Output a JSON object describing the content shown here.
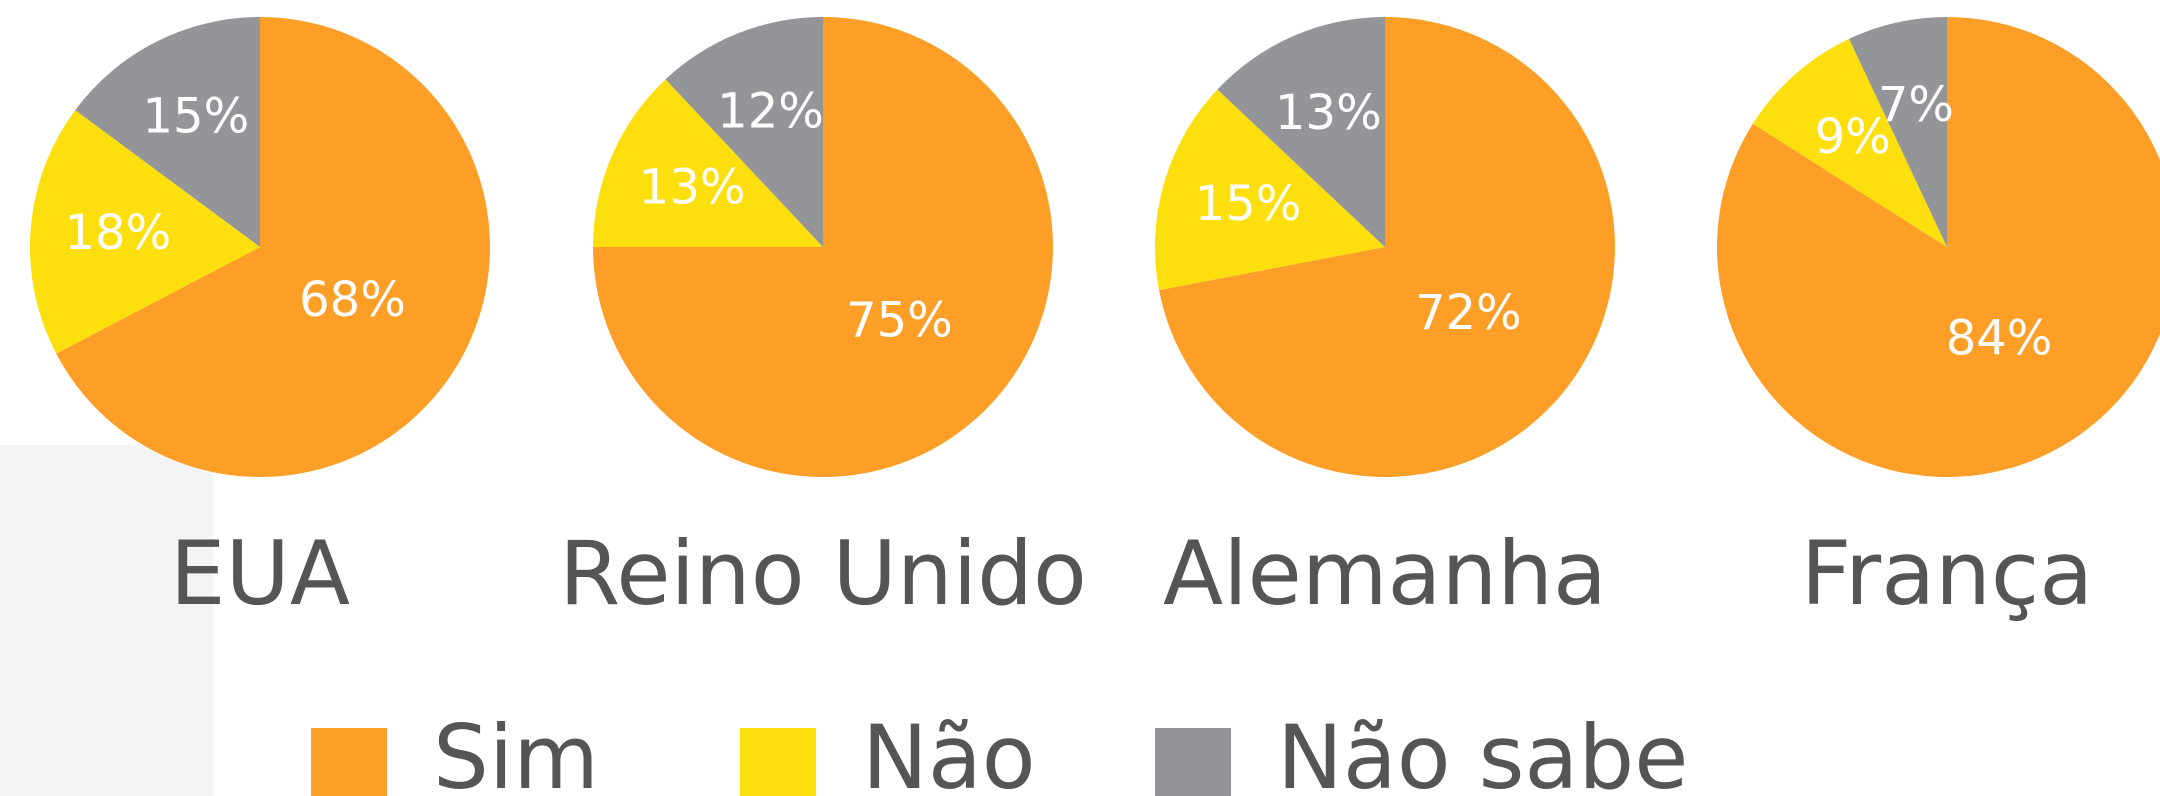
{
  "chart_data": {
    "type": "pie",
    "categories": [
      "EUA",
      "Reino Unido",
      "Alemanha",
      "França"
    ],
    "series": [
      {
        "name": "Sim",
        "color": "#fd9e27",
        "values": [
          68,
          75,
          72,
          84
        ],
        "value_labels": [
          "68%",
          "75%",
          "72%",
          "84%"
        ]
      },
      {
        "name": "Não",
        "color": "#fddf0d",
        "values": [
          18,
          13,
          15,
          9
        ],
        "value_labels": [
          "18%",
          "13%",
          "15%",
          "9%"
        ]
      },
      {
        "name": "Não sabe",
        "color": "#939598",
        "values": [
          15,
          12,
          13,
          7
        ],
        "value_labels": [
          "15%",
          "12%",
          "13%",
          "7%"
        ]
      }
    ]
  }
}
